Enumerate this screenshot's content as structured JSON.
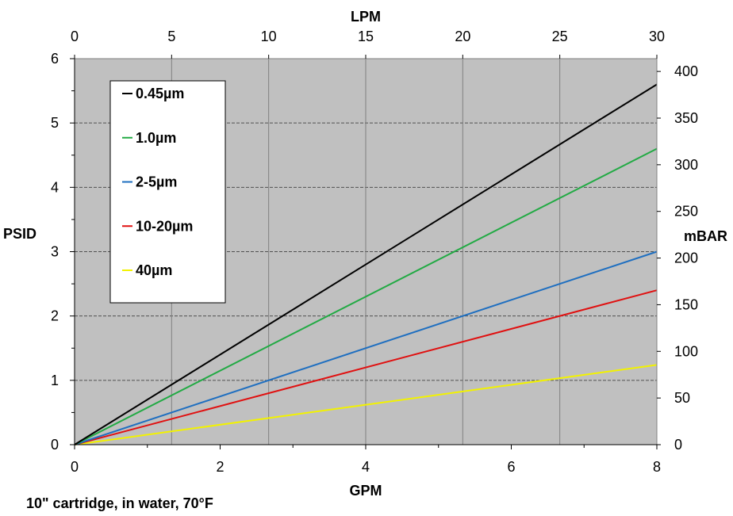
{
  "chart_data": {
    "type": "line",
    "plot_background": "#c0c0c0",
    "grid": true,
    "legend_position": "top-left",
    "x_bottom": {
      "label": "GPM",
      "range": [
        0,
        8
      ],
      "ticks": [
        "0",
        "2",
        "4",
        "6",
        "8"
      ],
      "tick_values": [
        0,
        2,
        4,
        6,
        8
      ]
    },
    "x_top": {
      "label": "LPM",
      "range": [
        0,
        30
      ],
      "ticks": [
        "0",
        "5",
        "10",
        "15",
        "20",
        "25",
        "30"
      ],
      "tick_values": [
        0,
        5,
        10,
        15,
        20,
        25,
        30
      ]
    },
    "y_left": {
      "label": "PSID",
      "range": [
        0,
        6
      ],
      "ticks": [
        "0",
        "1",
        "2",
        "3",
        "4",
        "5",
        "6"
      ],
      "tick_values": [
        0,
        1,
        2,
        3,
        4,
        5,
        6
      ]
    },
    "y_right": {
      "label": "mBAR",
      "range": [
        0,
        413.7
      ],
      "ticks": [
        "0",
        "50",
        "100",
        "150",
        "200",
        "250",
        "300",
        "350",
        "400"
      ],
      "tick_values": [
        0,
        50,
        100,
        150,
        200,
        250,
        300,
        350,
        400
      ]
    },
    "series": [
      {
        "name": "0.45µm",
        "color": "#000000",
        "x": [
          0,
          8
        ],
        "y": [
          0,
          5.6
        ]
      },
      {
        "name": "1.0µm",
        "color": "#22aa44",
        "x": [
          0,
          8
        ],
        "y": [
          0,
          4.6
        ]
      },
      {
        "name": "2-5µm",
        "color": "#1f6fc0",
        "x": [
          0,
          8
        ],
        "y": [
          0,
          3.0
        ]
      },
      {
        "name": "10-20µm",
        "color": "#e01010",
        "x": [
          0,
          8
        ],
        "y": [
          0,
          2.4
        ]
      },
      {
        "name": "40µm",
        "color": "#f2f200",
        "x": [
          0,
          8
        ],
        "y": [
          0,
          1.24
        ]
      }
    ],
    "annotation": "10\" cartridge, in water, 70°F"
  }
}
